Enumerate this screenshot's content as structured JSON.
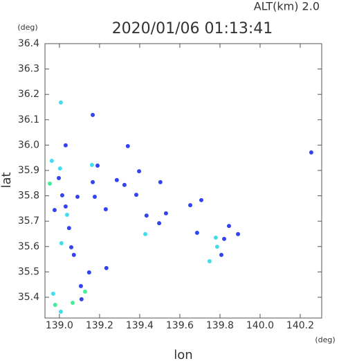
{
  "chart_data": {
    "type": "scatter",
    "title": "2020/01/06 01:13:41",
    "subtitle": "ALT(km) 2.0",
    "x_label": "lon",
    "y_label": "lat",
    "x_unit": "(deg)",
    "y_unit": "(deg)",
    "xlim": [
      138.928,
      140.307
    ],
    "ylim": [
      35.318,
      36.4
    ],
    "xticks": [
      {
        "value": 139,
        "label": "139.0"
      },
      139.2,
      139.4,
      139.6,
      139.8,
      {
        "value": 140,
        "label": "140.0"
      },
      140.2
    ],
    "yticks": [
      35.4,
      35.5,
      35.6,
      35.7,
      35.8,
      35.9,
      {
        "value": 36,
        "label": "36.0"
      },
      36.1,
      36.2,
      36.3,
      36.4
    ],
    "grid": false,
    "x": [
      139.007,
      139.166,
      139.031,
      138.962,
      139.003,
      138.997,
      138.952,
      139.014,
      139.09,
      139.031,
      138.976,
      139.038,
      139.048,
      139.01,
      139.059,
      139.072,
      139.148,
      139.234,
      139.107,
      139.128,
      139.066,
      138.969,
      138.979,
      139.007,
      139.11,
      139.162,
      139.19,
      139.166,
      140.255,
      139.503,
      139.707,
      139.652,
      139.845,
      139.89,
      139.779,
      139.821,
      139.786,
      139.748,
      139.807,
      139.686,
      139.383,
      139.497,
      139.434,
      139.531,
      139.428,
      139.286,
      139.324,
      139.397,
      139.341,
      139.176,
      139.231
    ],
    "y": [
      36.168,
      36.119,
      35.999,
      35.938,
      35.908,
      35.87,
      35.848,
      35.802,
      35.796,
      35.758,
      35.744,
      35.725,
      35.673,
      35.613,
      35.597,
      35.567,
      35.498,
      35.515,
      35.444,
      35.422,
      35.378,
      35.414,
      35.37,
      35.343,
      35.392,
      35.922,
      35.919,
      35.854,
      35.971,
      35.854,
      35.783,
      35.763,
      35.681,
      35.649,
      35.635,
      35.63,
      35.599,
      35.542,
      35.567,
      35.654,
      35.804,
      35.692,
      35.722,
      35.731,
      35.649,
      35.862,
      35.843,
      35.897,
      35.996,
      35.796,
      35.747
    ],
    "colors": [
      "#44ddee",
      "#3344ee",
      "#3344ee",
      "#44ddee",
      "#44ddee",
      "#3344ee",
      "#44ee99",
      "#3344ee",
      "#3344ee",
      "#3344ee",
      "#3344ee",
      "#44ddee",
      "#3344ee",
      "#44ddee",
      "#3344ee",
      "#3344ee",
      "#3344ee",
      "#3344ee",
      "#3344ee",
      "#44ee99",
      "#44ee99",
      "#44ddee",
      "#44ee99",
      "#44ddee",
      "#3344ee",
      "#44ddee",
      "#3344ee",
      "#3344ee",
      "#3344ee",
      "#3344ee",
      "#3344ee",
      "#3344ee",
      "#3344ee",
      "#3344ee",
      "#44ddee",
      "#3344ee",
      "#44ddee",
      "#44ddee",
      "#3344ee",
      "#3344ee",
      "#3344ee",
      "#3344ee",
      "#3344ee",
      "#3344ee",
      "#44ddee",
      "#3344ee",
      "#3344ee",
      "#3344ee",
      "#3344ee",
      "#3344ee",
      "#3344ee"
    ]
  }
}
